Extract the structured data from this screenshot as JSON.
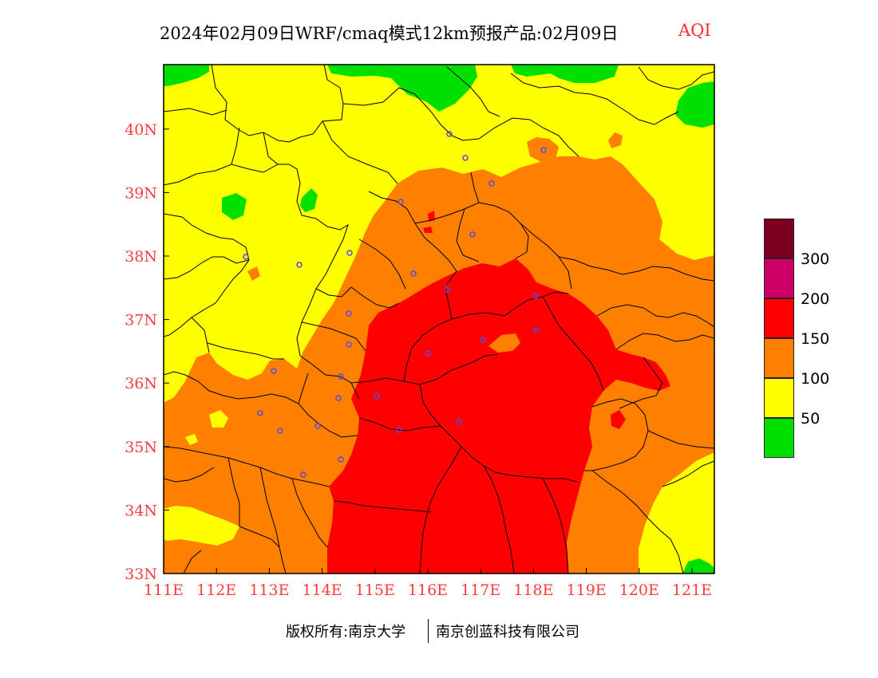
{
  "title": {
    "main": "2024年02月09日WRF/cmaq模式12km预报产品:02月09日",
    "variable": "AQI"
  },
  "map": {
    "lon_ticks": [
      "111E",
      "112E",
      "113E",
      "114E",
      "115E",
      "116E",
      "117E",
      "118E",
      "119E",
      "120E",
      "121E"
    ],
    "lat_ticks": [
      "33N",
      "34N",
      "35N",
      "36N",
      "37N",
      "38N",
      "39N",
      "40N"
    ],
    "axis_color": "#ff3b3b"
  },
  "legend": {
    "labels": [
      "50",
      "100",
      "150",
      "200",
      "300"
    ],
    "colors": [
      "#00e000",
      "#ffff00",
      "#ff8000",
      "#ff0000",
      "#cc0066",
      "#7d0023"
    ]
  },
  "footer": {
    "copyright": "版权所有:南京大学",
    "company": "南京创蓝科技有限公司"
  }
}
